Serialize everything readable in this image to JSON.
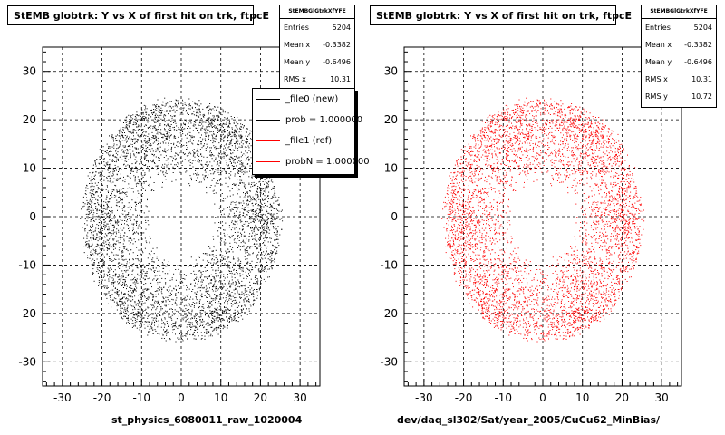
{
  "chart_data": [
    {
      "type": "scatter",
      "title": "StEMB globtrk: Y vs X of first hit on trk, ftpcE",
      "xlabel": "st_physics_6080011_raw_1020004",
      "ylabel": "",
      "xlim": [
        -35,
        35
      ],
      "ylim": [
        -35,
        35
      ],
      "xticks": [
        -30,
        -20,
        -10,
        0,
        10,
        20,
        30
      ],
      "yticks": [
        -30,
        -20,
        -10,
        0,
        10,
        20,
        30
      ],
      "grid": true,
      "marker_color": "#000000",
      "stats": {
        "name": "StEMBGlGtrkXfYFE",
        "entries_label": "Entries",
        "entries": "5204",
        "meanx_label": "Mean x",
        "meanx": "-0.3382",
        "meany_label": "Mean y",
        "meany": "-0.6496",
        "rmsx_label": "RMS x",
        "rmsx": "10.31"
      },
      "legend": {
        "placement": "top-right",
        "entries": [
          {
            "label": "_file0 (new)",
            "color": "#000000"
          },
          {
            "label": "prob = 1.000000",
            "color": "#000000"
          },
          {
            "label": "_file1 (ref)",
            "color": "#ff0000"
          },
          {
            "label": "probN = 1.000000",
            "color": "#ff0000"
          }
        ]
      },
      "distribution": {
        "entries": 5204,
        "inner_hole_radius": 8,
        "outer_radius": 25
      }
    },
    {
      "type": "scatter",
      "title": "StEMB globtrk: Y vs X of first hit on trk, ftpcE",
      "xlabel": "dev/daq_sl302/Sat/year_2005/CuCu62_MinBias/",
      "ylabel": "",
      "xlim": [
        -35,
        35
      ],
      "ylim": [
        -35,
        35
      ],
      "xticks": [
        -30,
        -20,
        -10,
        0,
        10,
        20,
        30
      ],
      "yticks": [
        -30,
        -20,
        -10,
        0,
        10,
        20,
        30
      ],
      "grid": true,
      "marker_color": "#ff0000",
      "stats": {
        "name": "StEMBGlGtrkXfYFE",
        "entries_label": "Entries",
        "entries": "5204",
        "meanx_label": "Mean x",
        "meanx": "-0.3382",
        "meany_label": "Mean y",
        "meany": "-0.6496",
        "rmsx_label": "RMS x",
        "rmsx": "10.31",
        "rmsy_label": "RMS y",
        "rmsy": "10.72"
      },
      "distribution": {
        "entries": 5204,
        "inner_hole_radius": 8,
        "outer_radius": 25
      }
    }
  ]
}
